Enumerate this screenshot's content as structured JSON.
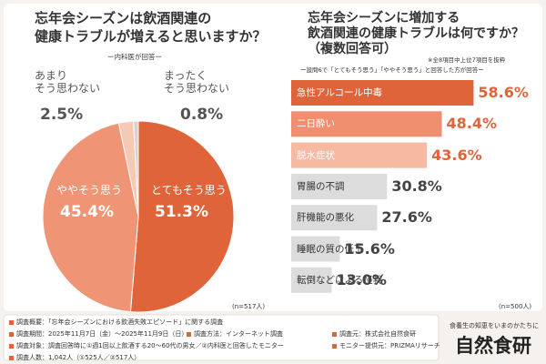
{
  "chart_data": [
    {
      "type": "pie",
      "title": [
        "忘年会シーズンは飲酒関連の",
        "健康トラブルが増えると思いますか？"
      ],
      "subtitle": "ー内科医が回答ー",
      "categories": [
        "とてもそう思う",
        "ややそう思う",
        "あまり\nそう思わない",
        "まったく\nそう思わない"
      ],
      "values": [
        51.3,
        45.4,
        2.5,
        0.8
      ],
      "value_labels": [
        "51.3%",
        "45.4%",
        "2.5%",
        "0.8%"
      ],
      "colors": [
        "#e0643a",
        "#ef9576",
        "#f6c9b5",
        "#d8d3cf"
      ],
      "note": "(n=517人)"
    },
    {
      "type": "bar",
      "title": [
        "忘年会シーズンに増加する",
        "飲酒関連の健康トラブルは何ですか？",
        "（複数回答可）"
      ],
      "note_top": "※全8項目中上位7項目を抜粋",
      "subtitle": "ー設問6で「とてもそう思う」「ややそう思う」と回答した方が回答ー",
      "categories": [
        "急性アルコール中毒",
        "二日酔い",
        "脱水症状",
        "胃腸の不調",
        "肝機能の悪化",
        "睡眠の質の低下",
        "転倒などによる怪我"
      ],
      "values": [
        58.6,
        48.4,
        43.6,
        30.8,
        27.6,
        15.6,
        13.0
      ],
      "value_labels": [
        "58.6%",
        "48.4%",
        "43.6%",
        "30.8%",
        "27.6%",
        "15.6%",
        "13.0%"
      ],
      "colors": [
        "#e0643a",
        "#ef8f6f",
        "#f6b9a2",
        "#dcdcdc",
        "#dcdcdc",
        "#dcdcdc",
        "#dcdcdc"
      ],
      "note": "(n=500人)"
    }
  ],
  "footer": {
    "items": [
      "調査概要：「忘年会シーズンにおける飲酒失敗エピソード」に関する調査",
      "調査期間：2025年11月7日（金）～2025年11月9日（日）",
      "調査方法：インターネット調査",
      "調査元：株式会社自然食研",
      "調査対象：調査回答時に①週1回以上飲酒する20～60代の男女／②内科医と回答したモニター",
      "モニター提供元：PRIZMAリサーチ",
      "調査人数：1,042人（①525人／②517人）"
    ],
    "brand_tagline": "食養生の知恵をいまのかたちに",
    "brand": "自然食研"
  }
}
